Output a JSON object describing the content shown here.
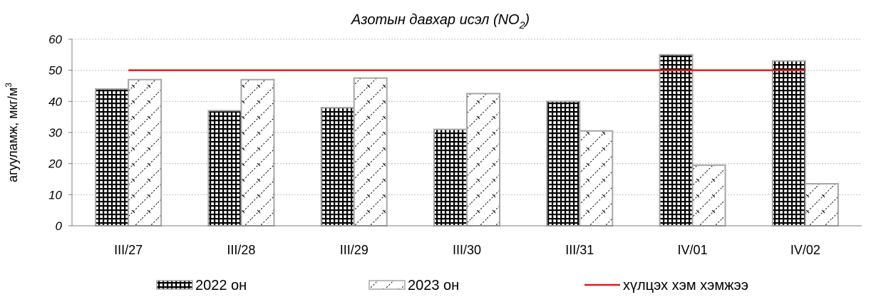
{
  "chart_data": {
    "type": "bar",
    "title_main": "Азотын давхар исэл (NO",
    "title_sub": "2",
    "title_end": ")",
    "ylabel_main": "агууламж, мкг/м",
    "ylabel_sup": "3",
    "xlabel": "",
    "ylim": [
      0,
      60
    ],
    "yticks": [
      0,
      10,
      20,
      30,
      40,
      50,
      60
    ],
    "grid": true,
    "legend_position": "bottom",
    "categories": [
      "III/27",
      "III/28",
      "III/29",
      "III/30",
      "III/31",
      "IV/01",
      "IV/02"
    ],
    "series": [
      {
        "name": "2022 он",
        "pattern": "grid-pattern",
        "values": [
          44,
          37,
          38,
          31,
          40,
          55,
          53
        ]
      },
      {
        "name": "2023 он",
        "pattern": "diagonal-pattern",
        "values": [
          47,
          47,
          47.5,
          42.5,
          30.5,
          19.5,
          13.5
        ]
      }
    ],
    "threshold": {
      "name": "хүлцэх хэм хэмжээ",
      "value": 50,
      "color": "#e31a1c"
    },
    "colors": {
      "bar_border": "#a6a6a6",
      "grid": "#bfbfbf",
      "axis": "#7f7f7f",
      "pattern_ink": "#000000"
    }
  }
}
